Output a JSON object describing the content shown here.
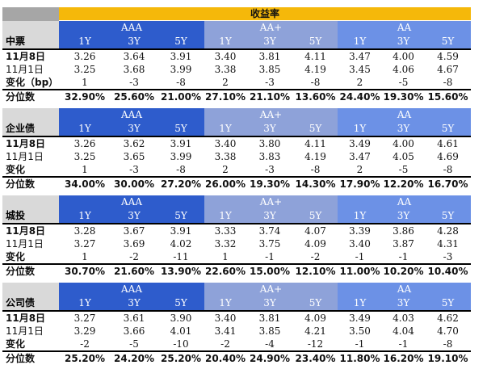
{
  "title": "收益率",
  "groups": [
    "AAA",
    "AA+",
    "AA"
  ],
  "tenors": [
    "1Y",
    "3Y",
    "5Y"
  ],
  "sections": [
    {
      "name": "中票",
      "rows": [
        {
          "label": "11月8日",
          "bold": true,
          "values": [
            "3.26",
            "3.64",
            "3.91",
            "3.40",
            "3.81",
            "4.11",
            "3.47",
            "4.00",
            "4.59"
          ]
        },
        {
          "label": "11月1日",
          "bold": false,
          "values": [
            "3.25",
            "3.68",
            "3.99",
            "3.38",
            "3.85",
            "4.19",
            "3.45",
            "4.06",
            "4.67"
          ]
        },
        {
          "label": "变化（bp）",
          "bold": true,
          "values": [
            "1",
            "-3",
            "-8",
            "2",
            "-3",
            "-8",
            "2",
            "-5",
            "-8"
          ]
        },
        {
          "label": "分位数",
          "bold": true,
          "values": [
            "32.90%",
            "25.60%",
            "21.00%",
            "27.10%",
            "21.10%",
            "13.60%",
            "24.40%",
            "19.30%",
            "15.60%"
          ]
        }
      ]
    },
    {
      "name": "企业债",
      "rows": [
        {
          "label": "11月8日",
          "bold": true,
          "values": [
            "3.26",
            "3.62",
            "3.91",
            "3.40",
            "3.80",
            "4.11",
            "3.49",
            "4.00",
            "4.61"
          ]
        },
        {
          "label": "11月1日",
          "bold": false,
          "values": [
            "3.25",
            "3.65",
            "3.99",
            "3.38",
            "3.83",
            "4.19",
            "3.47",
            "4.05",
            "4.69"
          ]
        },
        {
          "label": "变化",
          "bold": true,
          "values": [
            "1",
            "-3",
            "-8",
            "2",
            "-3",
            "-8",
            "2",
            "-5",
            "-8"
          ]
        },
        {
          "label": "分位数",
          "bold": true,
          "values": [
            "34.00%",
            "30.00%",
            "27.20%",
            "26.00%",
            "19.30%",
            "14.30%",
            "17.90%",
            "12.20%",
            "16.70%"
          ]
        }
      ]
    },
    {
      "name": "城投",
      "rows": [
        {
          "label": "11月8日",
          "bold": true,
          "values": [
            "3.28",
            "3.67",
            "3.91",
            "3.33",
            "3.74",
            "4.07",
            "3.39",
            "3.86",
            "4.28"
          ]
        },
        {
          "label": "11月1日",
          "bold": false,
          "values": [
            "3.27",
            "3.69",
            "4.02",
            "3.32",
            "3.75",
            "4.09",
            "3.40",
            "3.87",
            "4.31"
          ]
        },
        {
          "label": "变化",
          "bold": true,
          "values": [
            "1",
            "-2",
            "-11",
            "1",
            "-1",
            "-2",
            "-1",
            "-1",
            "-3"
          ]
        },
        {
          "label": "分位数",
          "bold": true,
          "values": [
            "30.70%",
            "21.60%",
            "13.90%",
            "22.60%",
            "15.00%",
            "12.10%",
            "11.00%",
            "10.20%",
            "10.40%"
          ]
        }
      ]
    },
    {
      "name": "公司债",
      "rows": [
        {
          "label": "11月8日",
          "bold": true,
          "values": [
            "3.27",
            "3.61",
            "3.90",
            "3.40",
            "3.81",
            "4.09",
            "3.49",
            "4.03",
            "4.62"
          ]
        },
        {
          "label": "11月1日",
          "bold": false,
          "values": [
            "3.29",
            "3.66",
            "4.01",
            "3.41",
            "3.85",
            "4.21",
            "3.50",
            "4.04",
            "4.70"
          ]
        },
        {
          "label": "变化",
          "bold": true,
          "values": [
            "-2",
            "-5",
            "-10",
            "-2",
            "-4",
            "-12",
            "-1",
            "-1",
            "-8"
          ]
        },
        {
          "label": "分位数",
          "bold": true,
          "values": [
            "25.20%",
            "24.20%",
            "25.20%",
            "20.40%",
            "24.90%",
            "23.40%",
            "11.80%",
            "16.20%",
            "19.10%"
          ]
        }
      ]
    }
  ],
  "colors": {
    "title_bg": "#f5b80a",
    "aaa_bg": "#2e5ccc",
    "aaplus_bg": "#8ea2d9",
    "aa_bg": "#6c91e6",
    "category_bg": "#d9d9d9"
  }
}
